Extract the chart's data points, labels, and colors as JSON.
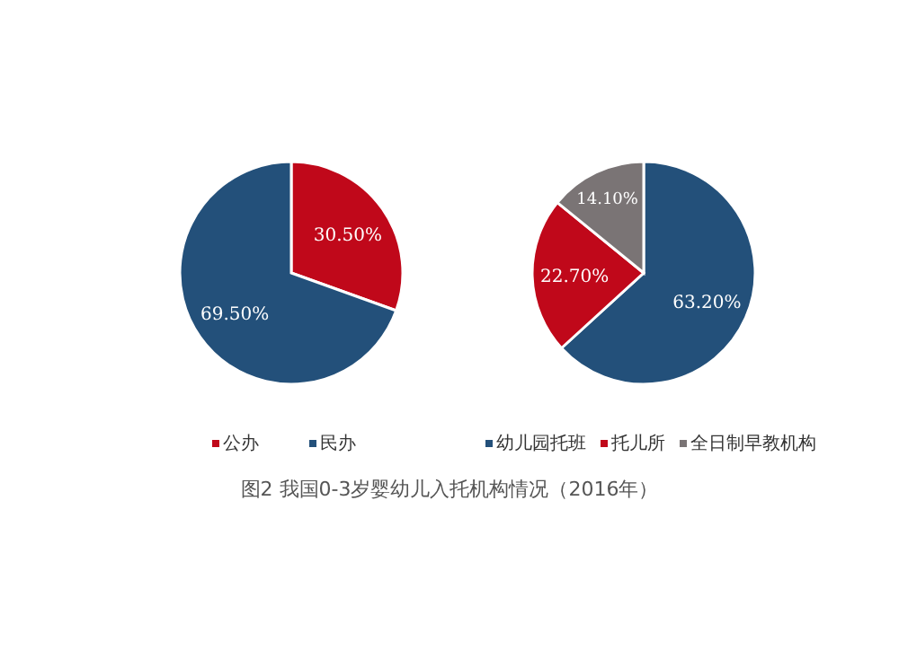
{
  "chart_data": [
    {
      "type": "pie",
      "categories": [
        "公办",
        "民办"
      ],
      "values": [
        30.5,
        69.5
      ],
      "value_labels": [
        "30.50%",
        "69.50%"
      ],
      "colors": [
        "#c0081a",
        "#23507a"
      ],
      "legend": "bottom",
      "annotations": [
        "图2  我国0-3岁婴幼儿入托机构情况（2016年）"
      ]
    },
    {
      "type": "pie",
      "categories": [
        "幼儿园托班",
        "托儿所",
        "全日制早教机构"
      ],
      "values": [
        63.2,
        22.7,
        14.1
      ],
      "value_labels": [
        "63.20%",
        "22.70%",
        "14.10%"
      ],
      "colors": [
        "#23507a",
        "#c0081a",
        "#7a7475"
      ],
      "legend": "bottom"
    }
  ]
}
